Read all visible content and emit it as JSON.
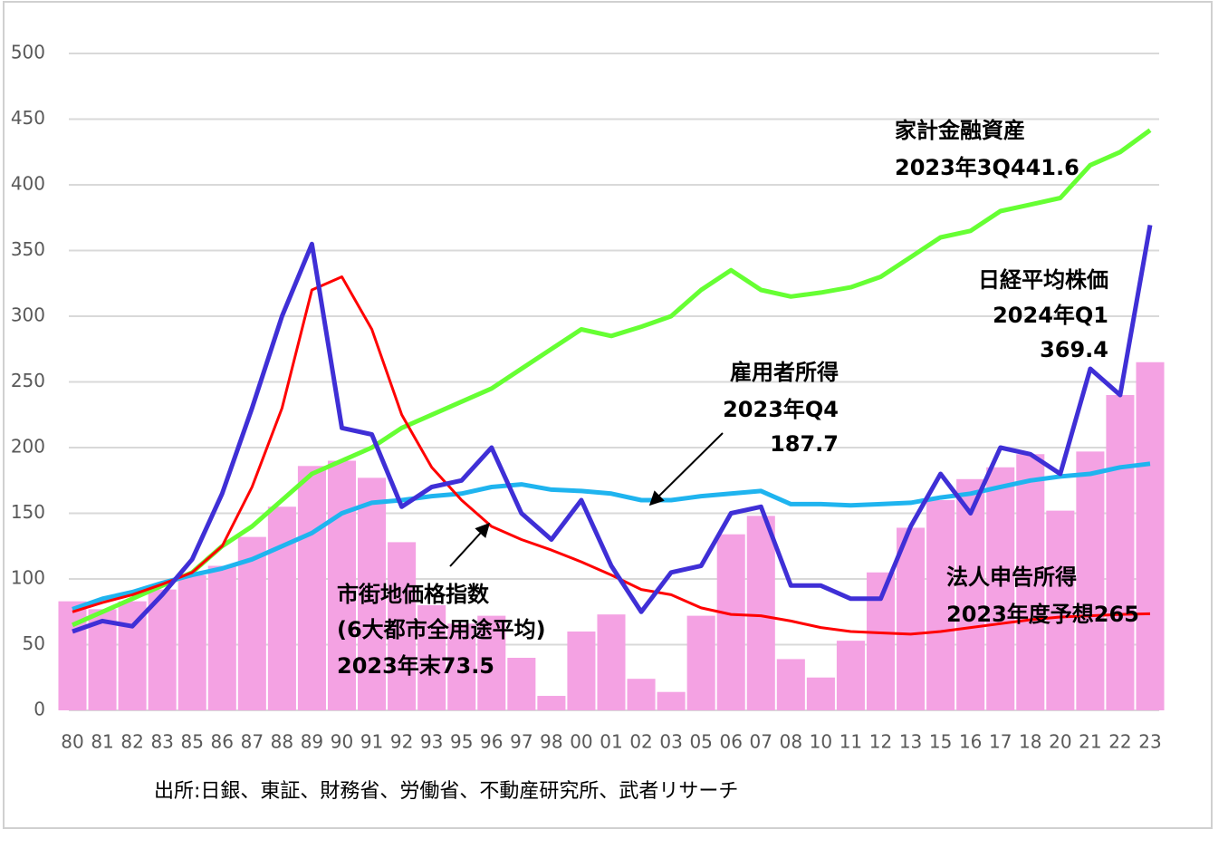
{
  "chart_data": {
    "type": "line",
    "categories": [
      "80",
      "81",
      "82",
      "83",
      "85",
      "86",
      "87",
      "88",
      "89",
      "90",
      "91",
      "92",
      "93",
      "95",
      "96",
      "97",
      "98",
      "00",
      "01",
      "02",
      "03",
      "05",
      "06",
      "07",
      "08",
      "10",
      "11",
      "12",
      "13",
      "15",
      "16",
      "17",
      "18",
      "20",
      "21",
      "22",
      "23"
    ],
    "ylim": [
      0,
      500
    ],
    "yticks": [
      0,
      50,
      100,
      150,
      200,
      250,
      300,
      350,
      400,
      450,
      500
    ],
    "grid": true,
    "series": [
      {
        "name": "法人申告所得",
        "type": "bar",
        "color": "#f4a2e3",
        "values": [
          83,
          77,
          83,
          92,
          103,
          110,
          132,
          155,
          186,
          190,
          177,
          128,
          80,
          66,
          72,
          40,
          11,
          60,
          73,
          24,
          14,
          72,
          134,
          148,
          39,
          25,
          53,
          105,
          139,
          160,
          176,
          185,
          195,
          152,
          197,
          240,
          265
        ]
      },
      {
        "name": "家計金融資産",
        "color": "#66ff33",
        "values": [
          65,
          75,
          85,
          95,
          105,
          125,
          140,
          160,
          180,
          190,
          200,
          215,
          225,
          235,
          245,
          260,
          275,
          290,
          285,
          292,
          300,
          320,
          335,
          320,
          315,
          318,
          322,
          330,
          345,
          360,
          365,
          380,
          385,
          390,
          415,
          425,
          441.6
        ]
      },
      {
        "name": "雇用者所得",
        "color": "#1fb4ef",
        "values": [
          77,
          85,
          90,
          97,
          103,
          108,
          115,
          125,
          135,
          150,
          158,
          160,
          163,
          165,
          170,
          172,
          168,
          167,
          165,
          160,
          160,
          163,
          165,
          167,
          157,
          157,
          156,
          157,
          158,
          162,
          165,
          170,
          175,
          178,
          180,
          185,
          187.7
        ]
      },
      {
        "name": "市街地価格指数",
        "color": "#ff0000",
        "values": [
          75,
          82,
          88,
          96,
          105,
          125,
          170,
          230,
          320,
          330,
          290,
          225,
          185,
          160,
          140,
          130,
          122,
          113,
          103,
          92,
          88,
          78,
          73,
          72,
          68,
          63,
          60,
          59,
          58,
          60,
          63,
          66,
          69,
          71,
          72,
          73,
          73.5
        ]
      },
      {
        "name": "日経平均株価",
        "color": "#3f2fd6",
        "values": [
          60,
          68,
          64,
          88,
          115,
          165,
          230,
          300,
          355,
          215,
          210,
          155,
          170,
          175,
          200,
          150,
          130,
          160,
          110,
          75,
          105,
          110,
          150,
          155,
          95,
          95,
          85,
          85,
          140,
          180,
          150,
          200,
          195,
          180,
          260,
          240,
          369.4
        ]
      }
    ],
    "annotations": [
      "2023年度予想265",
      "2023年3Q441.6",
      "2023年Q4",
      "187.7",
      "(6大都市全用途平均)",
      "2023年末73.5",
      "2024年Q1",
      "369.4"
    ],
    "source": "出所:日銀、東証、財務省、労働省、不動産研究所、武者リサーチ"
  }
}
